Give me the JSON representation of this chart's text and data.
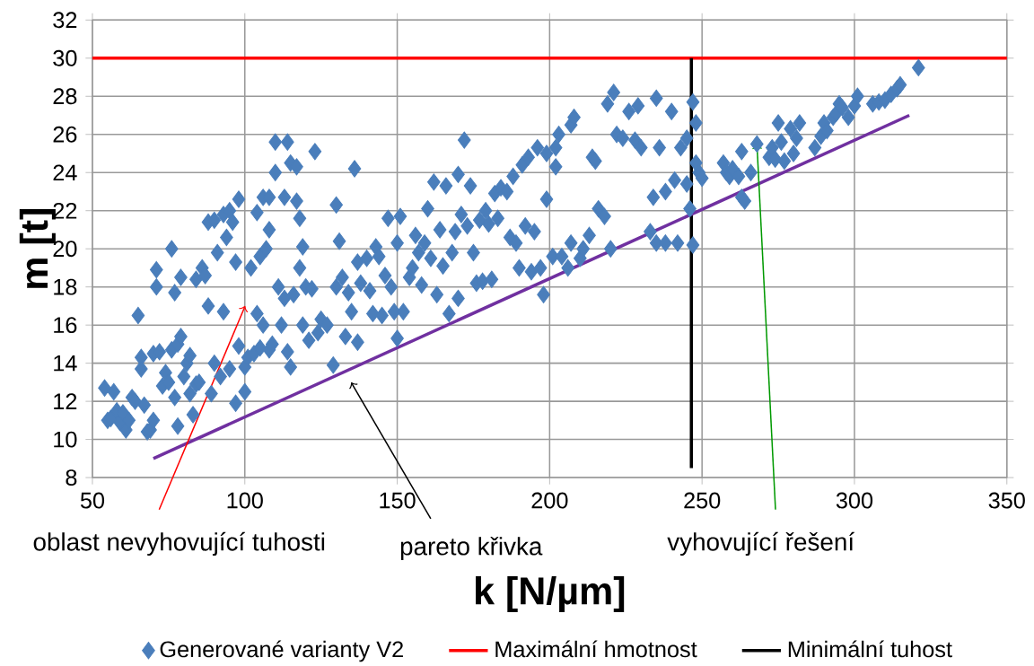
{
  "chart_data": {
    "type": "scatter",
    "xlabel": "k [N/µm]",
    "ylabel": "m [t]",
    "xlim": [
      50,
      350
    ],
    "ylim": [
      8,
      32
    ],
    "xticks": [
      50,
      100,
      150,
      200,
      250,
      300,
      350
    ],
    "yticks": [
      8,
      10,
      12,
      14,
      16,
      18,
      20,
      22,
      24,
      26,
      28,
      30,
      32
    ],
    "grid": true,
    "legend": "bottom",
    "annotations": [
      "oblast nevyhovující tuhosti",
      "pareto křivka",
      {
        "text": "vyhovující řešení",
        "x": 268,
        "y": 25.5
      }
    ],
    "series": [
      {
        "name": "Generované varianty V2",
        "color": "#4a7ebb",
        "marker": "diamond",
        "x": [
          54,
          55,
          56,
          57,
          58,
          59,
          60,
          61,
          62,
          63,
          64,
          65,
          66,
          66,
          67,
          68,
          69,
          70,
          70,
          71,
          71,
          72,
          73,
          74,
          75,
          76,
          76,
          77,
          77,
          78,
          78,
          79,
          79,
          80,
          81,
          82,
          82,
          83,
          84,
          84,
          85,
          86,
          87,
          88,
          88,
          89,
          90,
          90,
          91,
          92,
          93,
          93,
          94,
          95,
          95,
          96,
          97,
          97,
          98,
          98,
          100,
          100,
          101,
          102,
          103,
          104,
          104,
          105,
          105,
          106,
          106,
          107,
          108,
          108,
          108,
          109,
          110,
          110,
          111,
          112,
          113,
          113,
          114,
          114,
          115,
          115,
          116,
          117,
          117,
          118,
          118,
          119,
          119,
          120,
          121,
          122,
          123,
          124,
          125,
          127,
          129,
          130,
          130,
          131,
          132,
          133,
          134,
          135,
          136,
          137,
          137,
          138,
          140,
          141,
          142,
          143,
          144,
          145,
          146,
          147,
          148,
          149,
          150,
          150,
          151,
          152,
          154,
          155,
          156,
          157,
          158,
          159,
          160,
          161,
          162,
          163,
          164,
          165,
          166,
          167,
          168,
          169,
          170,
          170,
          171,
          172,
          173,
          174,
          175,
          176,
          177,
          178,
          179,
          180,
          181,
          182,
          183,
          184,
          186,
          187,
          188,
          189,
          190,
          191,
          192,
          193,
          194,
          195,
          196,
          197,
          198,
          199,
          199,
          201,
          202,
          202,
          203,
          204,
          206,
          207,
          207,
          208,
          210,
          211,
          213,
          214,
          215,
          216,
          218,
          219,
          220,
          221,
          222,
          224,
          226,
          228,
          229,
          230,
          233,
          234,
          235,
          235,
          236,
          238,
          238,
          240,
          241,
          242,
          243,
          245,
          245,
          246,
          247,
          247,
          248,
          248,
          249,
          250,
          257,
          258,
          259,
          260,
          262,
          263,
          263,
          264,
          266,
          268,
          272,
          273,
          274,
          275,
          276,
          277,
          279,
          280,
          281,
          282,
          287,
          289,
          290,
          291,
          293,
          294,
          295,
          296,
          298,
          300,
          301,
          306,
          308,
          310,
          312,
          314,
          315,
          321
        ],
        "values": [
          12.7,
          11,
          11.1,
          12.5,
          11.5,
          10.9,
          11.4,
          10.5,
          11,
          12.2,
          12,
          16.5,
          14.3,
          13.7,
          11.8,
          10.4,
          10.5,
          11,
          14.5,
          18,
          18.9,
          14.6,
          12.8,
          13.5,
          13,
          14.7,
          20,
          12.2,
          17.7,
          15,
          10.7,
          15.4,
          18.5,
          13.3,
          14,
          12.4,
          14.4,
          11.3,
          12.9,
          18.4,
          13,
          19,
          18.6,
          17,
          21.4,
          12.4,
          21.5,
          14,
          19.8,
          13.3,
          16.7,
          21.8,
          20.6,
          13.7,
          22,
          21.4,
          11.9,
          19.3,
          22.6,
          14.9,
          13.8,
          12.5,
          14.3,
          19,
          14.5,
          21.9,
          16.6,
          19.6,
          14.8,
          16,
          22.7,
          20,
          14.7,
          22.7,
          21,
          15,
          24,
          25.6,
          18,
          16,
          17.4,
          22.7,
          25.6,
          14.6,
          24.5,
          13.8,
          17.6,
          22.5,
          24.3,
          19,
          21.6,
          16,
          20.1,
          18,
          15.2,
          17.9,
          25.1,
          15.6,
          16.3,
          16,
          13.9,
          22.3,
          18,
          20.4,
          18.5,
          15.4,
          17.7,
          16.7,
          24.2,
          19.3,
          15.1,
          18.2,
          19.5,
          17.8,
          16.6,
          20.1,
          19.6,
          16.5,
          18.6,
          21.6,
          18,
          16.7,
          15.3,
          20.3,
          21.7,
          16.7,
          18.5,
          19,
          20.7,
          19.8,
          18.1,
          20.3,
          22.1,
          19.5,
          23.5,
          17.6,
          21,
          19.1,
          23.3,
          16.6,
          19.8,
          20.9,
          23.9,
          17.4,
          21.8,
          25.7,
          21.2,
          23.3,
          19.8,
          18.2,
          21.5,
          18.3,
          22,
          21.3,
          18.4,
          22.9,
          21.6,
          23.2,
          23,
          20.6,
          23.8,
          20.3,
          19,
          24.4,
          21.2,
          24.8,
          18.8,
          20.9,
          25.3,
          19,
          17.6,
          25,
          22.6,
          19.6,
          25.3,
          24.3,
          26,
          19.6,
          19,
          20.3,
          26.5,
          26.9,
          19.5,
          20,
          20.7,
          24.8,
          24.6,
          22.1,
          21.7,
          27.6,
          20,
          28.2,
          26,
          25.8,
          27.2,
          25.7,
          27.5,
          25.3,
          20.9,
          22.7,
          20.3,
          27.9,
          25.3,
          23,
          20.3,
          27.2,
          23.6,
          20.3,
          25.3,
          25.8,
          23.4,
          22.1,
          27.7,
          20.2,
          24.5,
          26.6,
          24,
          23.7,
          24.5,
          24,
          23.8,
          24.2,
          23.8,
          25.1,
          22.7,
          22.5,
          24,
          25.5,
          24.8,
          25.3,
          24.7,
          26.6,
          25.6,
          24.6,
          26.3,
          25,
          25.8,
          26.6,
          25.3,
          25.9,
          26.6,
          26.2,
          26.9,
          27.1,
          27.6,
          27.4,
          26.9,
          27.5,
          28,
          27.6,
          27.7,
          27.8,
          28.1,
          28.4,
          28.6,
          29.5
        ]
      },
      {
        "name": "Maximální hmotnost",
        "type": "line",
        "color": "#ff0000",
        "x": [
          50,
          350
        ],
        "values": [
          30,
          30
        ]
      },
      {
        "name": "Minimální tuhost",
        "type": "line",
        "color": "#000000",
        "x": [
          246.5,
          246.5
        ],
        "values": [
          8.5,
          30
        ]
      },
      {
        "type": "line",
        "color": "#7030a0",
        "x": [
          70,
          318
        ],
        "values": [
          9,
          27
        ]
      }
    ]
  }
}
